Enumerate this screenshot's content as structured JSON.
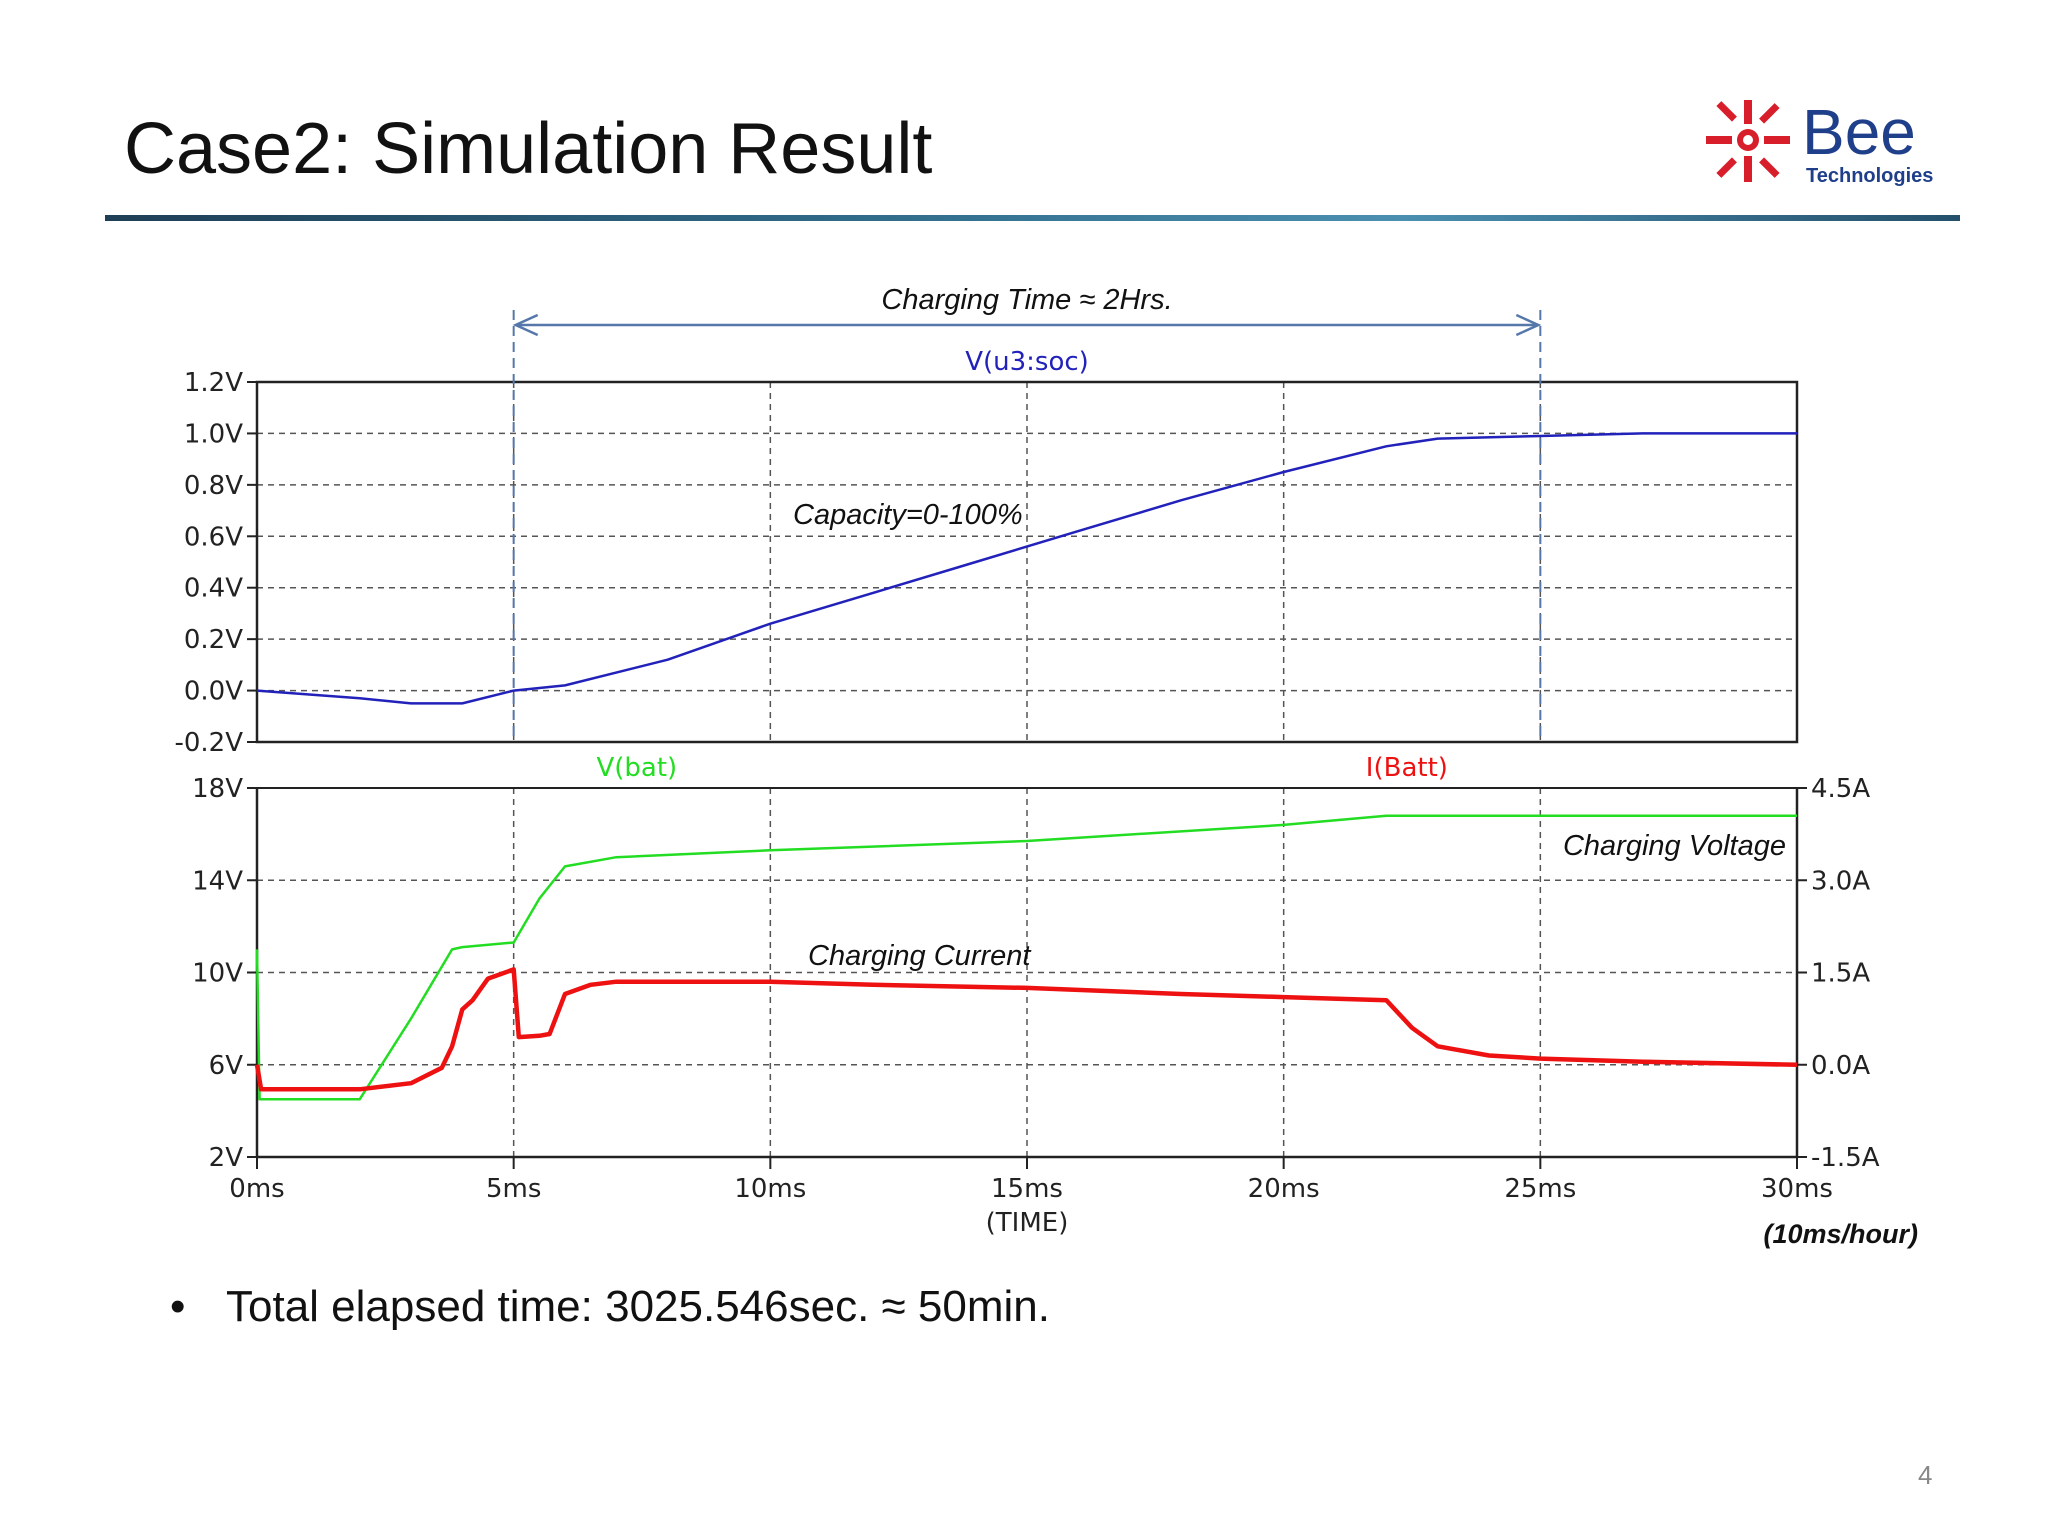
{
  "slide": {
    "title": "Case2: Simulation Result",
    "bullet": "Total elapsed time: 3025.546sec. ≈ 50min.",
    "page_number": "4",
    "logo": {
      "text_main": "Bee",
      "text_sub": "Technologies",
      "color_main": "#1f3f8a",
      "color_mark": "#d81e2a"
    }
  },
  "chart_data": [
    {
      "type": "line",
      "title": "V(u3:soc)",
      "ylim": [
        -0.2,
        1.2
      ],
      "yticks": [
        -0.2,
        0.0,
        0.2,
        0.4,
        0.6,
        0.8,
        1.0,
        1.2
      ],
      "ytick_labels": [
        "-0.2V",
        "0.0V",
        "0.2V",
        "0.4V",
        "0.6V",
        "0.8V",
        "1.0V",
        "1.2V"
      ],
      "xlim": [
        0,
        30
      ],
      "grid": true,
      "series": [
        {
          "name": "V(u3:soc)",
          "color": "#2222bb",
          "x": [
            0,
            2,
            3,
            4,
            5,
            6,
            8,
            10,
            12,
            14,
            16,
            18,
            20,
            22,
            23,
            25,
            27,
            30
          ],
          "y": [
            0.0,
            -0.03,
            -0.05,
            -0.05,
            0.0,
            0.02,
            0.12,
            0.26,
            0.38,
            0.5,
            0.62,
            0.74,
            0.85,
            0.95,
            0.98,
            0.99,
            1.0,
            1.0
          ]
        }
      ],
      "annotations": [
        {
          "text": "Charging Time ≈ 2Hrs.",
          "x_start": 5,
          "x_end": 25
        },
        {
          "text": "Capacity=0-100%"
        }
      ]
    },
    {
      "type": "line",
      "xlabel": "(TIME)",
      "xticks": [
        0,
        5,
        10,
        15,
        20,
        25,
        30
      ],
      "xtick_labels": [
        "0ms",
        "5ms",
        "10ms",
        "15ms",
        "20ms",
        "25ms",
        "30ms"
      ],
      "xlim": [
        0,
        30
      ],
      "ylim": [
        2,
        18
      ],
      "yticks": [
        2,
        6,
        10,
        14,
        18
      ],
      "ytick_labels": [
        "2V",
        "6V",
        "10V",
        "14V",
        "18V"
      ],
      "y2lim": [
        -1.5,
        4.5
      ],
      "y2ticks": [
        -1.5,
        0.0,
        1.5,
        3.0,
        4.5
      ],
      "y2tick_labels": [
        "-1.5A",
        "0.0A",
        "1.5A",
        "3.0A",
        "4.5A"
      ],
      "grid": true,
      "series": [
        {
          "name": "V(bat)",
          "color": "#22dd22",
          "axis": "left",
          "x": [
            0,
            0.05,
            0.1,
            2,
            3,
            3.8,
            4,
            5,
            5.5,
            6,
            7,
            10,
            15,
            20,
            22,
            25,
            30
          ],
          "y": [
            11.0,
            4.5,
            4.5,
            4.5,
            8.0,
            11.0,
            11.1,
            11.3,
            13.2,
            14.6,
            15.0,
            15.3,
            15.7,
            16.4,
            16.8,
            16.8,
            16.8
          ]
        },
        {
          "name": "I(Batt)",
          "color": "#ee1111",
          "axis": "right",
          "x": [
            0,
            0.08,
            0.15,
            2,
            3,
            3.6,
            3.8,
            4,
            4.2,
            4.5,
            5,
            5.1,
            5.5,
            5.7,
            6,
            6.5,
            7,
            8,
            10,
            12,
            15,
            18,
            20,
            22,
            22.5,
            23,
            24,
            25,
            27,
            30
          ],
          "y": [
            0.0,
            -0.4,
            -0.4,
            -0.4,
            -0.3,
            -0.05,
            0.3,
            0.9,
            1.05,
            1.4,
            1.55,
            0.45,
            0.47,
            0.5,
            1.15,
            1.3,
            1.35,
            1.35,
            1.35,
            1.3,
            1.25,
            1.15,
            1.1,
            1.05,
            0.6,
            0.3,
            0.15,
            0.1,
            0.05,
            0.0
          ]
        }
      ],
      "annotations": [
        {
          "text": "Charging Voltage"
        },
        {
          "text": "Charging Current"
        },
        {
          "text": "(10ms/hour)"
        }
      ]
    }
  ]
}
